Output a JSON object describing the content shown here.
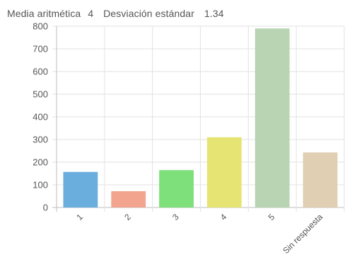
{
  "stats": {
    "mean_label": "Media aritmética",
    "mean_value": "4",
    "std_label": "Desviación estándar",
    "std_value": "1.34"
  },
  "chart_data": {
    "type": "bar",
    "categories": [
      "1",
      "2",
      "3",
      "4",
      "5",
      "Sin respuesta"
    ],
    "values": [
      157,
      72,
      165,
      310,
      790,
      243
    ],
    "colors": [
      "#6aaede",
      "#f2a48e",
      "#7de07a",
      "#e6e472",
      "#b8d4b2",
      "#e0cfb3"
    ],
    "ylim": [
      0,
      800
    ],
    "yticks": [
      0,
      100,
      200,
      300,
      400,
      500,
      600,
      700,
      800
    ],
    "grid": true
  }
}
